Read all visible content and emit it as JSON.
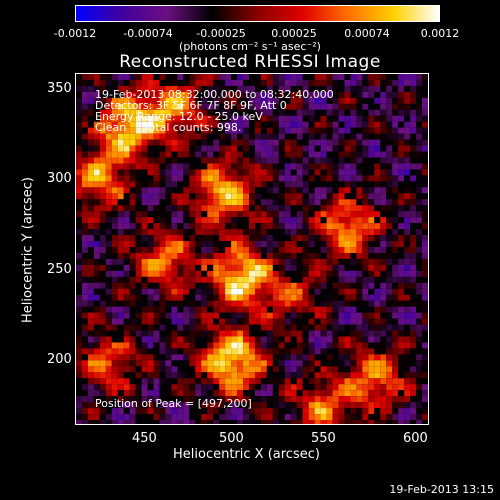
{
  "colorbar": {
    "ticks": [
      "-0.0012",
      "-0.00074",
      "-0.00025",
      "0.00025",
      "0.00074",
      "0.0012"
    ],
    "unit": "(photons cm⁻² s⁻¹ asec⁻²)",
    "stops": [
      "#0000ff",
      "#4000a0",
      "#6a1080",
      "#000000",
      "#8a0000",
      "#e00000",
      "#ff7000",
      "#ffd000",
      "#ffffff"
    ]
  },
  "title": "Reconstructed RHESSI Image",
  "annotations": {
    "time_range": "19-Feb-2013 08:32:00.000 to 08:32:40.000",
    "detectors": "Detectors: 3F 5F 6F 7F 8F 9F, Att 0",
    "energy_range": "Energy Range: 12.0 - 25.0 keV",
    "method_counts": "Clean     Total counts: 998.",
    "peak_position": "Position of Peak = [497,200]"
  },
  "axes": {
    "xlabel": "Heliocentric X (arcsec)",
    "ylabel": "Heliocentric Y (arcsec)",
    "x_ticks": [
      "450",
      "500",
      "550",
      "600"
    ],
    "y_ticks": [
      "200",
      "250",
      "300",
      "350"
    ],
    "x_range": [
      414,
      605
    ],
    "y_range": [
      164,
      357
    ]
  },
  "bright_sources": [
    {
      "x": 497,
      "y": 200,
      "level": 1.0
    },
    {
      "x": 502,
      "y": 247,
      "level": 0.95
    },
    {
      "x": 492,
      "y": 293,
      "level": 0.85
    },
    {
      "x": 440,
      "y": 330,
      "level": 0.9
    },
    {
      "x": 465,
      "y": 340,
      "level": 0.7
    },
    {
      "x": 425,
      "y": 300,
      "level": 0.7
    },
    {
      "x": 460,
      "y": 255,
      "level": 0.65
    },
    {
      "x": 560,
      "y": 275,
      "level": 0.75
    },
    {
      "x": 575,
      "y": 190,
      "level": 0.7
    },
    {
      "x": 545,
      "y": 175,
      "level": 0.6
    },
    {
      "x": 430,
      "y": 200,
      "level": 0.6
    },
    {
      "x": 530,
      "y": 235,
      "level": 0.45
    }
  ],
  "timestamp": "19-Feb-2013 13:15"
}
